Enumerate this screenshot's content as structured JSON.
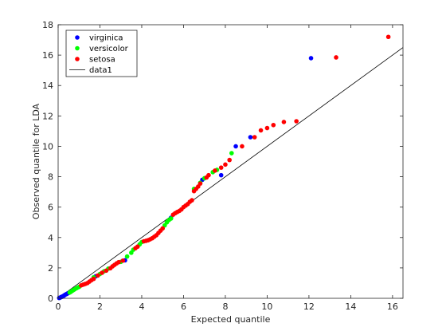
{
  "chart_data": {
    "type": "scatter",
    "title": "",
    "xlabel": "Expected quantile",
    "ylabel": "Observed quantile for LDA",
    "xlim": [
      0,
      16.5
    ],
    "ylim": [
      0,
      18
    ],
    "x_ticks": [
      "0",
      "2",
      "4",
      "6",
      "8",
      "10",
      "12",
      "14",
      "16"
    ],
    "y_ticks": [
      "0",
      "2",
      "4",
      "6",
      "8",
      "10",
      "12",
      "14",
      "16",
      "18"
    ],
    "grid": false,
    "legend_position": "top-left",
    "series": [
      {
        "name": "virginica",
        "color": "#0000ff",
        "marker": "circle",
        "points": [
          [
            0.05,
            0.02
          ],
          [
            0.1,
            0.05
          ],
          [
            0.14,
            0.08
          ],
          [
            0.18,
            0.1
          ],
          [
            0.22,
            0.13
          ],
          [
            0.26,
            0.16
          ],
          [
            0.3,
            0.2
          ],
          [
            0.34,
            0.24
          ],
          [
            0.4,
            0.28
          ],
          [
            0.45,
            0.32
          ],
          [
            0.5,
            0.35
          ],
          [
            1.8,
            1.45
          ],
          [
            3.2,
            2.5
          ],
          [
            5.4,
            5.3
          ],
          [
            6.9,
            7.8
          ],
          [
            7.8,
            8.1
          ],
          [
            8.5,
            10.0
          ],
          [
            9.2,
            10.6
          ],
          [
            12.1,
            15.8
          ]
        ]
      },
      {
        "name": "versicolor",
        "color": "#00ff00",
        "marker": "circle",
        "points": [
          [
            0.55,
            0.38
          ],
          [
            0.6,
            0.42
          ],
          [
            0.65,
            0.47
          ],
          [
            0.7,
            0.52
          ],
          [
            0.75,
            0.56
          ],
          [
            0.8,
            0.6
          ],
          [
            0.9,
            0.68
          ],
          [
            1.0,
            0.75
          ],
          [
            1.7,
            1.38
          ],
          [
            2.0,
            1.6
          ],
          [
            2.2,
            1.78
          ],
          [
            2.4,
            1.95
          ],
          [
            3.0,
            2.4
          ],
          [
            3.3,
            2.75
          ],
          [
            3.5,
            3.0
          ],
          [
            3.6,
            3.2
          ],
          [
            3.9,
            3.55
          ],
          [
            4.0,
            3.7
          ],
          [
            5.1,
            4.8
          ],
          [
            5.2,
            5.0
          ],
          [
            5.3,
            5.15
          ],
          [
            5.4,
            5.25
          ],
          [
            6.5,
            7.2
          ],
          [
            6.8,
            7.6
          ],
          [
            7.0,
            7.9
          ],
          [
            7.4,
            8.3
          ],
          [
            7.6,
            8.45
          ],
          [
            8.3,
            9.55
          ]
        ]
      },
      {
        "name": "setosa",
        "color": "#ff0000",
        "marker": "circle",
        "points": [
          [
            1.1,
            0.85
          ],
          [
            1.2,
            0.9
          ],
          [
            1.3,
            0.95
          ],
          [
            1.4,
            1.0
          ],
          [
            1.5,
            1.1
          ],
          [
            1.6,
            1.2
          ],
          [
            1.7,
            1.28
          ],
          [
            1.9,
            1.5
          ],
          [
            2.1,
            1.68
          ],
          [
            2.3,
            1.82
          ],
          [
            2.5,
            1.98
          ],
          [
            2.6,
            2.1
          ],
          [
            2.7,
            2.2
          ],
          [
            2.8,
            2.3
          ],
          [
            2.9,
            2.38
          ],
          [
            3.1,
            2.48
          ],
          [
            3.7,
            3.3
          ],
          [
            3.8,
            3.4
          ],
          [
            4.1,
            3.75
          ],
          [
            4.2,
            3.78
          ],
          [
            4.3,
            3.82
          ],
          [
            4.4,
            3.88
          ],
          [
            4.5,
            3.95
          ],
          [
            4.6,
            4.05
          ],
          [
            4.7,
            4.15
          ],
          [
            4.8,
            4.3
          ],
          [
            4.9,
            4.45
          ],
          [
            5.0,
            4.6
          ],
          [
            5.5,
            5.5
          ],
          [
            5.6,
            5.6
          ],
          [
            5.7,
            5.68
          ],
          [
            5.8,
            5.75
          ],
          [
            5.9,
            5.85
          ],
          [
            6.0,
            6.0
          ],
          [
            6.1,
            6.1
          ],
          [
            6.2,
            6.2
          ],
          [
            6.3,
            6.35
          ],
          [
            6.4,
            6.45
          ],
          [
            6.5,
            7.05
          ],
          [
            6.6,
            7.2
          ],
          [
            6.7,
            7.35
          ],
          [
            6.8,
            7.55
          ],
          [
            7.1,
            7.95
          ],
          [
            7.2,
            8.1
          ],
          [
            7.5,
            8.4
          ],
          [
            7.8,
            8.6
          ],
          [
            8.0,
            8.8
          ],
          [
            8.2,
            9.1
          ],
          [
            8.8,
            10.0
          ],
          [
            9.4,
            10.6
          ],
          [
            9.7,
            11.05
          ],
          [
            10.0,
            11.2
          ],
          [
            10.3,
            11.4
          ],
          [
            10.8,
            11.6
          ],
          [
            11.4,
            11.65
          ],
          [
            13.3,
            15.85
          ],
          [
            15.8,
            17.2
          ]
        ]
      },
      {
        "name": "data1",
        "color": "#000000",
        "type": "line",
        "points": [
          [
            0,
            0
          ],
          [
            16.5,
            16.5
          ]
        ]
      }
    ]
  }
}
